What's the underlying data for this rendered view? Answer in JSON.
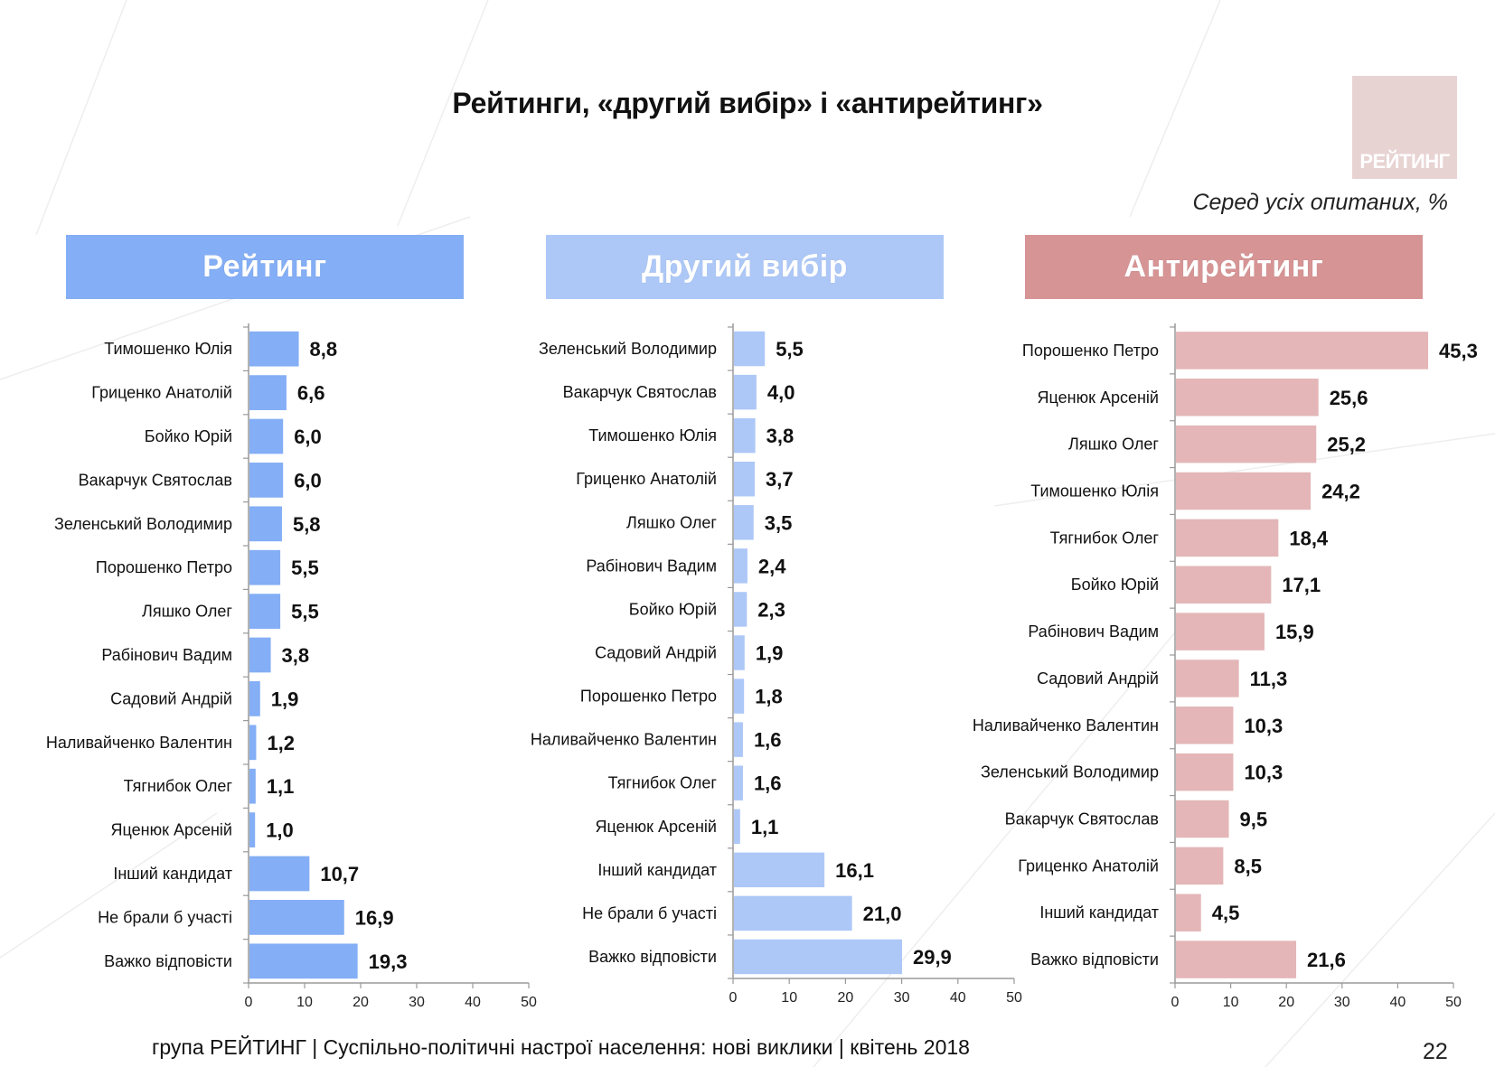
{
  "title": "Рейтинги, «другий вибір» і «антирейтинг»",
  "logo_text": "РЕЙТИНГ",
  "subtitle": "Серед усіх опитаних, %",
  "footer": "група РЕЙТИНГ  |  Суспільно-політичні настрої населення: нові виклики  |  квітень 2018",
  "page_number": "22",
  "colors": {
    "rating": "#84aef5",
    "second": "#adc8f7",
    "anti": "#e4b6b7",
    "anti_header": "#d69495"
  },
  "chart_data": [
    {
      "type": "bar",
      "orientation": "horizontal",
      "title": "Рейтинг",
      "categories": [
        "Тимошенко Юлія",
        "Гриценко Анатолій",
        "Бойко Юрій",
        "Вакарчук Святослав",
        "Зеленський Володимир",
        "Порошенко Петро",
        "Ляшко Олег",
        "Рабінович Вадим",
        "Садовий Андрій",
        "Наливайченко Валентин",
        "Тягнибок Олег",
        "Яценюк Арсеній",
        "Інший кандидат",
        "Не брали б участі",
        "Важко відповісти"
      ],
      "values": [
        8.8,
        6.6,
        6.0,
        6.0,
        5.8,
        5.5,
        5.5,
        3.8,
        1.9,
        1.2,
        1.1,
        1.0,
        10.7,
        16.9,
        19.3
      ],
      "labels": [
        "8,8",
        "6,6",
        "6,0",
        "6,0",
        "5,8",
        "5,5",
        "5,5",
        "3,8",
        "1,9",
        "1,2",
        "1,1",
        "1,0",
        "10,7",
        "16,9",
        "19,3"
      ],
      "xlim": [
        0,
        50
      ],
      "xticks": [
        "0",
        "10",
        "20",
        "30",
        "40",
        "50"
      ]
    },
    {
      "type": "bar",
      "orientation": "horizontal",
      "title": "Другий вибір",
      "categories": [
        "Зеленський Володимир",
        "Вакарчук Святослав",
        "Тимошенко Юлія",
        "Гриценко Анатолій",
        "Ляшко Олег",
        "Рабінович Вадим",
        "Бойко Юрій",
        "Садовий Андрій",
        "Порошенко Петро",
        "Наливайченко Валентин",
        "Тягнибок Олег",
        "Яценюк Арсеній",
        "Інший кандидат",
        "Не брали б участі",
        "Важко відповісти"
      ],
      "values": [
        5.5,
        4.0,
        3.8,
        3.7,
        3.5,
        2.4,
        2.3,
        1.9,
        1.8,
        1.6,
        1.6,
        1.1,
        16.1,
        21.0,
        29.9
      ],
      "labels": [
        "5,5",
        "4,0",
        "3,8",
        "3,7",
        "3,5",
        "2,4",
        "2,3",
        "1,9",
        "1,8",
        "1,6",
        "1,6",
        "1,1",
        "16,1",
        "21,0",
        "29,9"
      ],
      "xlim": [
        0,
        50
      ],
      "xticks": [
        "0",
        "10",
        "20",
        "30",
        "40",
        "50"
      ]
    },
    {
      "type": "bar",
      "orientation": "horizontal",
      "title": "Антирейтинг",
      "categories": [
        "Порошенко Петро",
        "Яценюк Арсеній",
        "Ляшко Олег",
        "Тимошенко Юлія",
        "Тягнибок Олег",
        "Бойко Юрій",
        "Рабінович Вадим",
        "Садовий Андрій",
        "Наливайченко Валентин",
        "Зеленський Володимир",
        "Вакарчук Святослав",
        "Гриценко Анатолій",
        "Інший кандидат",
        "Важко відповісти"
      ],
      "values": [
        45.3,
        25.6,
        25.2,
        24.2,
        18.4,
        17.1,
        15.9,
        11.3,
        10.3,
        10.3,
        9.5,
        8.5,
        4.5,
        21.6
      ],
      "labels": [
        "45,3",
        "25,6",
        "25,2",
        "24,2",
        "18,4",
        "17,1",
        "15,9",
        "11,3",
        "10,3",
        "10,3",
        "9,5",
        "8,5",
        "4,5",
        "21,6"
      ],
      "xlim": [
        0,
        50
      ],
      "xticks": [
        "0",
        "10",
        "20",
        "30",
        "40",
        "50"
      ]
    }
  ]
}
